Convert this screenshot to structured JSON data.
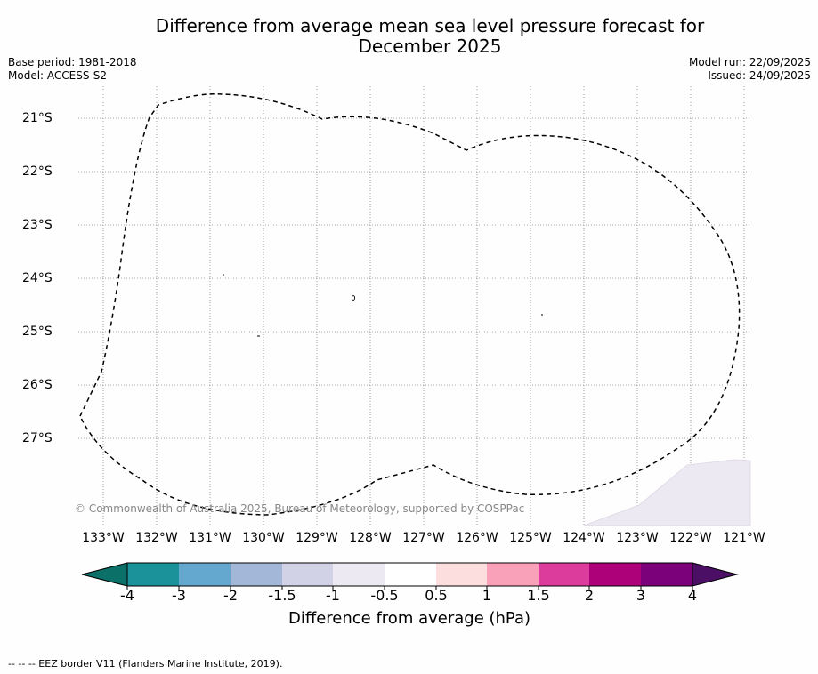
{
  "title_line1": "Difference from average mean sea level pressure forecast for",
  "title_line2": "December 2025",
  "meta_left": {
    "base_period": "Base period: 1981-2018",
    "model": "Model: ACCESS-S2"
  },
  "meta_right": {
    "model_run": "Model run: 22/09/2025",
    "issued": "Issued: 24/09/2025"
  },
  "lat_labels": [
    "21°S",
    "22°S",
    "23°S",
    "24°S",
    "25°S",
    "26°S",
    "27°S"
  ],
  "lon_labels": [
    "133°W",
    "132°W",
    "131°W",
    "130°W",
    "129°W",
    "128°W",
    "127°W",
    "126°W",
    "125°W",
    "124°W",
    "123°W",
    "122°W",
    "121°W"
  ],
  "copyright": "© Commonwealth of Australia 2025, Bureau of Meteorology, supported by COSPPac",
  "colorbar": {
    "ticks": [
      "-4",
      "-3",
      "-2",
      "-1.5",
      "-1",
      "-0.5",
      "0.5",
      "1",
      "1.5",
      "2",
      "3",
      "4"
    ],
    "colors": [
      "#0b7068",
      "#1b9199",
      "#64a8cf",
      "#a3b8d9",
      "#d1d2e6",
      "#ede9f2",
      "#ffffff",
      "#fddedf",
      "#f9a1b8",
      "#dc3c9b",
      "#ad017a",
      "#7b017a",
      "#4c0f66"
    ],
    "label": "Difference from average (hPa)"
  },
  "legend_note": "-- -- -- EEZ border V11 (Flanders Marine Institute, 2019)."
}
